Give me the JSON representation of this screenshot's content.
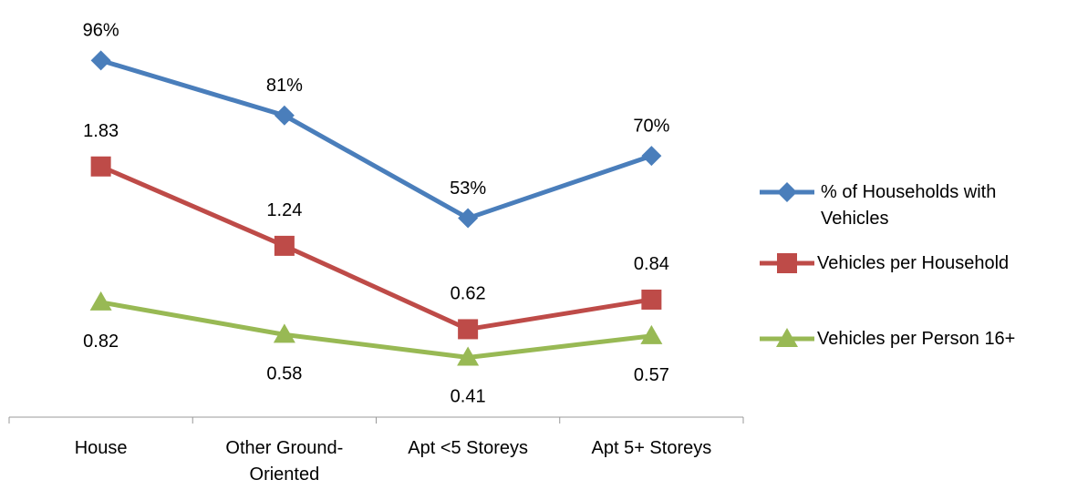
{
  "chart_data": {
    "type": "line",
    "categories": [
      "House",
      "Other Ground-Oriented",
      "Apt <5 Storeys",
      "Apt 5+ Storeys"
    ],
    "ylim": [
      0,
      3
    ],
    "y2lim": [
      0,
      110
    ],
    "series": [
      {
        "name": "% of Households with Vehicles",
        "color": "#4a7ebb",
        "marker": "diamond",
        "axis": "y2",
        "values": [
          96,
          81,
          53,
          70
        ],
        "value_labels": [
          "96%",
          "81%",
          "53%",
          "70%"
        ]
      },
      {
        "name": "Vehicles per Household",
        "color": "#be4b48",
        "marker": "square",
        "values": [
          1.83,
          1.24,
          0.62,
          0.84
        ]
      },
      {
        "name": "Vehicles per Person 16+",
        "color": "#98b954",
        "marker": "triangle",
        "values": [
          0.82,
          0.58,
          0.41,
          0.57
        ]
      }
    ]
  }
}
